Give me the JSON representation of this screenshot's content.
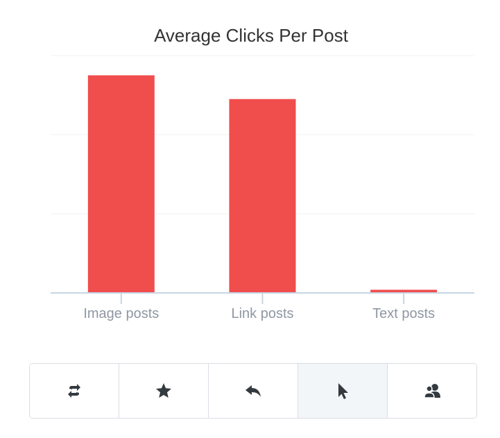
{
  "chart_data": {
    "type": "bar",
    "title": "Average Clicks Per Post",
    "categories": [
      "Image posts",
      "Link posts",
      "Text posts"
    ],
    "values": [
      2.75,
      2.45,
      0.04
    ],
    "ylim": [
      0,
      3
    ],
    "xlabel": "",
    "ylabel": "",
    "grid": true,
    "legend": "none",
    "colors": {
      "bar": "#f04d4d"
    }
  },
  "toolbar": {
    "buttons": [
      {
        "icon": "retweet-icon",
        "active": false
      },
      {
        "icon": "star-icon",
        "active": false
      },
      {
        "icon": "reply-icon",
        "active": false
      },
      {
        "icon": "cursor-icon",
        "active": true
      },
      {
        "icon": "followers-icon",
        "active": false
      }
    ]
  }
}
